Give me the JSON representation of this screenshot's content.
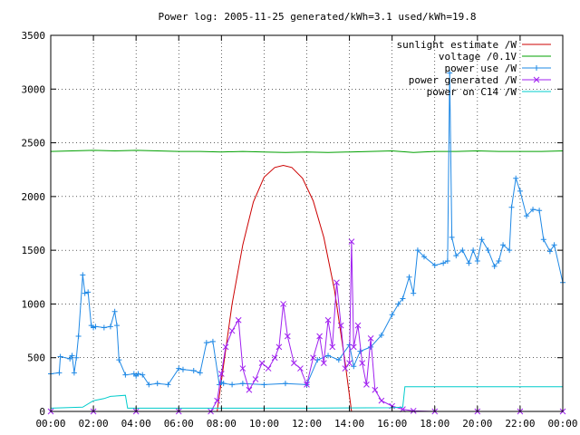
{
  "chart_data": {
    "type": "line",
    "title": "Power log: 2005-11-25 generated/kWh=3.1 used/kWh=19.8",
    "xlabel": "",
    "ylabel": "",
    "xlim": [
      0,
      24
    ],
    "ylim": [
      0,
      3500
    ],
    "x_ticks": [
      "00:00",
      "02:00",
      "04:00",
      "06:00",
      "08:00",
      "10:00",
      "12:00",
      "14:00",
      "16:00",
      "18:00",
      "20:00",
      "22:00",
      "00:00"
    ],
    "y_ticks": [
      "0",
      "500",
      "1000",
      "1500",
      "2000",
      "2500",
      "3000",
      "3500"
    ],
    "grid": true,
    "legend_position": "top-right",
    "series": [
      {
        "name": "sunlight estimate /W",
        "color": "#cc0000",
        "style": "line",
        "x": [
          7.8,
          8.5,
          9.0,
          9.5,
          10.0,
          10.5,
          10.9,
          11.3,
          11.8,
          12.3,
          12.8,
          13.3,
          13.8,
          14.1
        ],
        "y": [
          0,
          1000,
          1550,
          1950,
          2180,
          2270,
          2290,
          2270,
          2170,
          1960,
          1620,
          1130,
          450,
          0
        ]
      },
      {
        "name": "voltage /0.1V",
        "color": "#00a000",
        "style": "line",
        "x": [
          0,
          1,
          2,
          3,
          4,
          5,
          6,
          7,
          8,
          9,
          10,
          11,
          12,
          13,
          14,
          15,
          16,
          17,
          18,
          19,
          20,
          21,
          22,
          23,
          24
        ],
        "y": [
          2420,
          2425,
          2430,
          2425,
          2430,
          2425,
          2420,
          2420,
          2415,
          2420,
          2415,
          2410,
          2415,
          2410,
          2415,
          2420,
          2425,
          2410,
          2420,
          2420,
          2425,
          2420,
          2420,
          2420,
          2425
        ]
      },
      {
        "name": "power use /W",
        "color": "#1e88e5",
        "style": "linespoints-plus",
        "x": [
          0,
          0.4,
          0.45,
          0.9,
          1.0,
          1.1,
          1.2,
          1.3,
          1.5,
          1.6,
          1.75,
          1.9,
          2.0,
          2.1,
          2.5,
          2.8,
          3.0,
          3.1,
          3.2,
          3.5,
          3.9,
          4.0,
          4.1,
          4.3,
          4.6,
          5.0,
          5.5,
          6.0,
          6.2,
          6.7,
          7.0,
          7.3,
          7.6,
          7.9,
          8.0,
          8.1,
          8.5,
          9.0,
          10.0,
          11.0,
          12.0,
          12.5,
          13.0,
          13.5,
          14.0,
          14.2,
          14.5,
          15.0,
          15.5,
          16.0,
          16.3,
          16.5,
          16.8,
          17.0,
          17.2,
          17.5,
          18.0,
          18.4,
          18.6,
          18.7,
          18.8,
          19.0,
          19.3,
          19.6,
          19.8,
          20.0,
          20.2,
          20.5,
          20.8,
          21.0,
          21.2,
          21.5,
          21.6,
          21.8,
          22.0,
          22.3,
          22.6,
          22.9,
          23.1,
          23.4,
          23.6,
          24.0
        ],
        "y": [
          350,
          360,
          510,
          490,
          520,
          360,
          500,
          700,
          1270,
          1100,
          1110,
          800,
          780,
          790,
          780,
          790,
          930,
          800,
          480,
          340,
          350,
          330,
          350,
          340,
          250,
          260,
          250,
          400,
          390,
          380,
          360,
          640,
          650,
          250,
          270,
          260,
          250,
          260,
          250,
          260,
          250,
          480,
          520,
          480,
          620,
          420,
          560,
          600,
          710,
          900,
          1000,
          1050,
          1250,
          1100,
          1500,
          1440,
          1360,
          1380,
          1400,
          3150,
          1620,
          1450,
          1500,
          1380,
          1500,
          1400,
          1600,
          1500,
          1350,
          1400,
          1550,
          1500,
          1900,
          2170,
          2050,
          1820,
          1880,
          1870,
          1600,
          1490,
          1550,
          1200
        ]
      },
      {
        "name": "power generated /W",
        "color": "#a020f0",
        "style": "linespoints-x",
        "x": [
          0,
          2,
          4,
          6,
          7.5,
          7.8,
          8.0,
          8.2,
          8.5,
          8.8,
          9.0,
          9.3,
          9.6,
          9.9,
          10.2,
          10.5,
          10.7,
          10.9,
          11.1,
          11.4,
          11.7,
          12.0,
          12.3,
          12.6,
          12.8,
          13.0,
          13.2,
          13.4,
          13.6,
          13.8,
          14.0,
          14.1,
          14.2,
          14.4,
          14.6,
          14.8,
          15.0,
          15.2,
          15.5,
          16.0,
          16.5,
          17.0,
          18.0,
          20.0,
          22.0,
          24.0
        ],
        "y": [
          0,
          0,
          0,
          0,
          0,
          100,
          350,
          600,
          750,
          850,
          400,
          200,
          300,
          450,
          400,
          500,
          600,
          1000,
          700,
          450,
          400,
          250,
          500,
          700,
          450,
          850,
          600,
          1200,
          800,
          400,
          450,
          1580,
          600,
          800,
          450,
          250,
          680,
          200,
          100,
          50,
          20,
          5,
          0,
          0,
          0,
          0
        ]
      },
      {
        "name": "power on C14 /W",
        "color": "#00cccc",
        "style": "line",
        "x": [
          0,
          1.5,
          2.0,
          2.5,
          2.8,
          3.5,
          3.6,
          4.0,
          8.0,
          12.0,
          16.0,
          16.5,
          16.6,
          20.0,
          24.0
        ],
        "y": [
          30,
          40,
          100,
          120,
          140,
          150,
          30,
          30,
          30,
          30,
          35,
          40,
          230,
          230,
          230
        ]
      }
    ]
  }
}
